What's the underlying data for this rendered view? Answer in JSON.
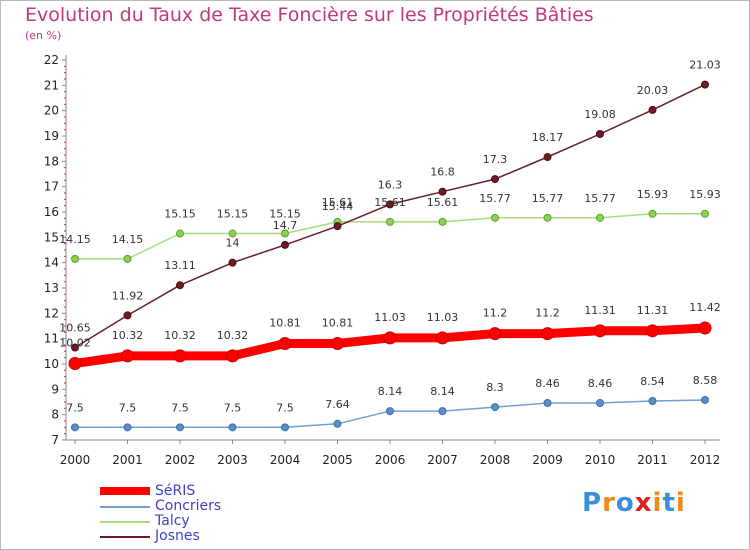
{
  "chart_data": {
    "type": "line",
    "title": "Evolution du Taux de Taxe Foncière sur les Propriétés Bâties",
    "unit_label": "(en %)",
    "x": [
      "2000",
      "2001",
      "2002",
      "2003",
      "2004",
      "2005",
      "2006",
      "2007",
      "2008",
      "2009",
      "2010",
      "2011",
      "2012"
    ],
    "ylim": [
      7,
      22
    ],
    "y_ticks": [
      "7",
      "8",
      "9",
      "10",
      "11",
      "12",
      "13",
      "14",
      "15",
      "16",
      "17",
      "18",
      "19",
      "20",
      "21",
      "22"
    ],
    "grid": false,
    "legend_position": "bottom-left",
    "series": [
      {
        "name": "SéRIS",
        "color": "#ff0000",
        "values": [
          10.02,
          10.32,
          10.32,
          10.32,
          10.81,
          10.81,
          11.03,
          11.03,
          11.2,
          11.2,
          11.31,
          11.31,
          11.42
        ],
        "labels": [
          "10.02",
          "10.32",
          "10.32",
          "10.32",
          "10.81",
          "10.81",
          "11.03",
          "11.03",
          "11.2",
          "11.2",
          "11.31",
          "11.31",
          "11.42"
        ]
      },
      {
        "name": "Concriers",
        "color": "#6fa0d0",
        "values": [
          7.5,
          7.5,
          7.5,
          7.5,
          7.5,
          7.64,
          8.14,
          8.14,
          8.3,
          8.46,
          8.46,
          8.54,
          8.58
        ],
        "labels": [
          "7.5",
          "7.5",
          "7.5",
          "7.5",
          "7.5",
          "7.64",
          "8.14",
          "8.14",
          "8.3",
          "8.46",
          "8.46",
          "8.54",
          "8.58"
        ]
      },
      {
        "name": "Talcy",
        "color": "#a8dc80",
        "values": [
          14.15,
          14.15,
          15.15,
          15.15,
          15.15,
          15.61,
          15.61,
          15.61,
          15.77,
          15.77,
          15.77,
          15.93,
          15.93
        ],
        "labels": [
          "14.15",
          "14.15",
          "15.15",
          "15.15",
          "15.15",
          "15.61",
          "15.61",
          "15.61",
          "15.77",
          "15.77",
          "15.77",
          "15.93",
          "15.93"
        ]
      },
      {
        "name": "Josnes",
        "color": "#6b1c24",
        "values": [
          10.65,
          11.92,
          13.11,
          14,
          14.7,
          15.44,
          16.3,
          16.8,
          17.3,
          18.17,
          19.08,
          20.03,
          21.03
        ],
        "labels": [
          "10.65",
          "11.92",
          "13.11",
          "14",
          "14.7",
          "15.44",
          "16.3",
          "16.8",
          "17.3",
          "18.17",
          "19.08",
          "20.03",
          "21.03"
        ]
      }
    ]
  },
  "legend": {
    "items": [
      {
        "name": "SéRIS",
        "color": "#ff0000"
      },
      {
        "name": "Concriers",
        "color": "#6fa0d0"
      },
      {
        "name": "Talcy",
        "color": "#a8dc80"
      },
      {
        "name": "Josnes",
        "color": "#6b1c24"
      }
    ]
  },
  "logo": {
    "letters": [
      "P",
      "r",
      "o",
      "x",
      "i",
      "t",
      "i"
    ],
    "colors": [
      "#3b8fd8",
      "#f08a1c",
      "#3b8fd8",
      "#e0201c",
      "#f08a1c",
      "#3b8fd8",
      "#f08a1c"
    ]
  }
}
